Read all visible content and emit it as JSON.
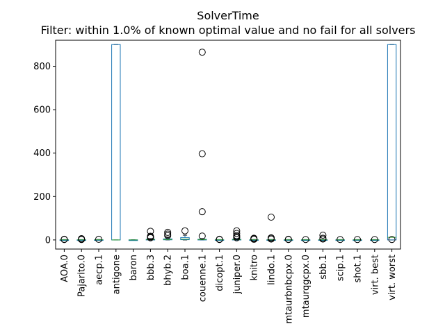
{
  "chart_data": {
    "type": "box",
    "title": "SolverTime",
    "subtitle": "Filter: within 1.0% of known optimal value and no fail for all solvers",
    "xlabel": "",
    "ylabel": "",
    "ylim": [
      -42,
      920
    ],
    "yticks": [
      0,
      200,
      400,
      600,
      800
    ],
    "grid": false,
    "colors": {
      "box": "#1f77b4",
      "median": "#2ca02c",
      "whisker": "#1f77b4",
      "flier": "#000000",
      "axis": "#000000"
    },
    "categories": [
      "AOA.0",
      "Pajarito.0",
      "aecp.1",
      "antigone",
      "baron",
      "bbb.3",
      "bhyb.2",
      "boa.1",
      "couenne.1",
      "dicopt.1",
      "juniper.0",
      "knitro",
      "lindo.1",
      "mtaurbnbcpx.0",
      "mtaurqgcpx.0",
      "sbb.1",
      "scip.1",
      "shot.1",
      "virt. best",
      "virt. worst"
    ],
    "boxes": [
      {
        "whislo": 0,
        "q1": 0,
        "med": 0.3,
        "q3": 0.8,
        "whishi": 1.5,
        "fliers": [
          2,
          3
        ]
      },
      {
        "whislo": 0,
        "q1": 0,
        "med": 0.3,
        "q3": 0.8,
        "whishi": 1.5,
        "fliers": [
          2,
          4,
          6
        ]
      },
      {
        "whislo": 0,
        "q1": 0,
        "med": 0.5,
        "q3": 1,
        "whishi": 2,
        "fliers": [
          3
        ]
      },
      {
        "whislo": 0,
        "q1": 0,
        "med": 0,
        "q3": 900,
        "whishi": 900,
        "fliers": []
      },
      {
        "whislo": 0,
        "q1": 0,
        "med": 0,
        "q3": 0.5,
        "whishi": 1,
        "fliers": []
      },
      {
        "whislo": 0,
        "q1": 0.5,
        "med": 1,
        "q3": 3,
        "whishi": 6,
        "fliers": [
          10,
          14,
          17,
          40
        ]
      },
      {
        "whislo": 0,
        "q1": 0.5,
        "med": 1.5,
        "q3": 5,
        "whishi": 10,
        "fliers": [
          20,
          27,
          35
        ]
      },
      {
        "whislo": 0,
        "q1": 1,
        "med": 4,
        "q3": 11,
        "whishi": 22,
        "fliers": [
          42
        ]
      },
      {
        "whislo": 0,
        "q1": 0.5,
        "med": 1.5,
        "q3": 3,
        "whishi": 6,
        "fliers": [
          18,
          130,
          397,
          865
        ]
      },
      {
        "whislo": 0,
        "q1": 0,
        "med": 0.5,
        "q3": 1,
        "whishi": 1.5,
        "fliers": [
          2,
          3
        ]
      },
      {
        "whislo": 0,
        "q1": 0.5,
        "med": 1,
        "q3": 3,
        "whishi": 6,
        "fliers": [
          10,
          15,
          20,
          30,
          42
        ]
      },
      {
        "whislo": 0,
        "q1": 0,
        "med": 0.5,
        "q3": 1,
        "whishi": 2,
        "fliers": [
          3,
          5,
          8
        ]
      },
      {
        "whislo": 0,
        "q1": 0,
        "med": 0.5,
        "q3": 1,
        "whishi": 2,
        "fliers": [
          4,
          8,
          10,
          105
        ]
      },
      {
        "whislo": 0,
        "q1": 0,
        "med": 0.3,
        "q3": 0.8,
        "whishi": 1.5,
        "fliers": [
          2,
          3
        ]
      },
      {
        "whislo": 0,
        "q1": 0,
        "med": 0.3,
        "q3": 0.8,
        "whishi": 1.5,
        "fliers": [
          2
        ]
      },
      {
        "whislo": 0,
        "q1": 0,
        "med": 0.5,
        "q3": 1,
        "whishi": 2,
        "fliers": [
          4,
          8,
          22
        ]
      },
      {
        "whislo": 0,
        "q1": 0,
        "med": 0.3,
        "q3": 0.8,
        "whishi": 1.5,
        "fliers": [
          2
        ]
      },
      {
        "whislo": 0,
        "q1": 0,
        "med": 0.3,
        "q3": 0.8,
        "whishi": 1.5,
        "fliers": [
          2
        ]
      },
      {
        "whislo": 0,
        "q1": 0,
        "med": 0.3,
        "q3": 0.8,
        "whishi": 1.5,
        "fliers": [
          2
        ]
      },
      {
        "whislo": 0,
        "q1": 0,
        "med": 12,
        "q3": 900,
        "whishi": 900,
        "fliers": [
          2
        ]
      }
    ]
  }
}
